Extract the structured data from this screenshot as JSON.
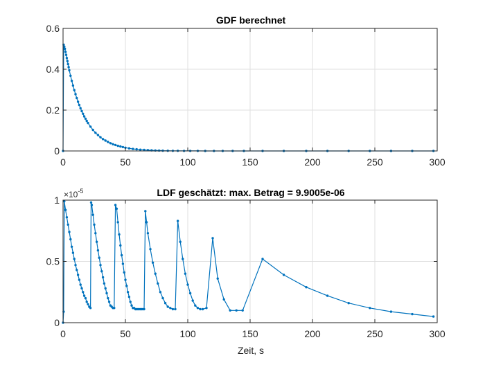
{
  "chart_data": [
    {
      "type": "line",
      "title": "GDF berechnet",
      "xlabel": "",
      "ylabel": "",
      "xlim": [
        0,
        300
      ],
      "ylim": [
        0,
        0.6
      ],
      "xticks": [
        "0",
        "50",
        "100",
        "150",
        "200",
        "250",
        "300"
      ],
      "yticks": [
        "0",
        "0.2",
        "0.4",
        "0.6"
      ],
      "grid": true,
      "color": "#0072BD",
      "x": [
        0,
        0.5,
        1,
        1.5,
        2,
        2.5,
        3,
        3.5,
        4,
        4.5,
        5,
        6,
        7,
        8,
        9,
        10,
        11,
        12,
        13,
        14,
        15,
        16,
        17,
        18,
        19,
        20,
        22,
        24,
        26,
        28,
        30,
        32,
        34,
        36,
        38,
        40,
        42,
        44,
        46,
        48,
        50,
        53,
        56,
        59,
        62,
        65,
        68,
        71,
        74,
        77,
        80,
        84,
        88,
        92,
        97,
        102,
        108,
        114,
        121,
        128,
        136,
        145,
        160,
        177,
        195,
        212,
        229,
        246,
        263,
        280,
        297
      ],
      "y": [
        0,
        0.52,
        0.51,
        0.5,
        0.485,
        0.47,
        0.455,
        0.44,
        0.425,
        0.41,
        0.395,
        0.368,
        0.343,
        0.32,
        0.298,
        0.278,
        0.259,
        0.241,
        0.225,
        0.209,
        0.195,
        0.182,
        0.169,
        0.158,
        0.147,
        0.137,
        0.119,
        0.103,
        0.089,
        0.078,
        0.067,
        0.058,
        0.051,
        0.044,
        0.038,
        0.033,
        0.029,
        0.025,
        0.022,
        0.019,
        0.016,
        0.013,
        0.01,
        0.008,
        0.006,
        0.005,
        0.004,
        0.003,
        0.0025,
        0.002,
        0.0015,
        0.001,
        0.0008,
        0.0006,
        0.0004,
        0.0003,
        0.0002,
        0.00015,
        0.0001,
        8e-05,
        5e-05,
        3e-05,
        2e-05,
        1e-05,
        1e-05,
        1e-05,
        1e-05,
        1e-05,
        1e-05,
        1e-05,
        1e-05
      ]
    },
    {
      "type": "line",
      "title": "LDF geschätzt: max. Betrag = 9.9005e-06",
      "xlabel": "Zeit, s",
      "ylabel": "",
      "y_multiplier": "×10",
      "y_multiplier_exponent": "-5",
      "xlim": [
        0,
        300
      ],
      "ylim": [
        0,
        1
      ],
      "xticks": [
        "0",
        "50",
        "100",
        "150",
        "200",
        "250",
        "300"
      ],
      "yticks": [
        "0",
        "0.5",
        "1"
      ],
      "grid": true,
      "color": "#0072BD",
      "x": [
        0,
        0.5,
        1,
        2,
        3,
        4,
        5,
        6,
        7,
        8,
        9,
        10,
        11,
        12,
        13,
        14,
        15,
        16,
        17,
        18,
        19,
        20,
        21,
        22,
        22.5,
        23,
        24,
        25,
        26,
        27,
        28,
        29,
        30,
        31,
        32,
        33,
        34,
        35,
        36,
        37,
        38,
        39,
        40,
        41,
        42,
        43,
        44,
        45,
        46,
        47,
        48,
        49,
        50,
        51,
        52,
        53,
        54,
        55,
        56,
        57,
        58,
        59,
        60,
        61,
        62,
        63,
        64,
        65,
        66,
        67,
        68,
        70,
        72,
        74,
        76,
        78,
        80,
        82,
        84,
        86,
        88,
        90,
        92,
        94,
        96,
        98,
        100,
        102,
        104,
        106,
        108,
        110,
        112,
        115,
        120,
        124,
        129,
        134,
        139,
        144,
        160,
        177,
        195,
        212,
        229,
        246,
        263,
        280,
        297
      ],
      "y": [
        0.0,
        0.09,
        0.99,
        0.92,
        0.86,
        0.8,
        0.74,
        0.68,
        0.62,
        0.57,
        0.52,
        0.47,
        0.43,
        0.39,
        0.35,
        0.31,
        0.28,
        0.25,
        0.22,
        0.2,
        0.17,
        0.15,
        0.13,
        0.12,
        0.98,
        0.96,
        0.88,
        0.8,
        0.73,
        0.66,
        0.59,
        0.53,
        0.47,
        0.42,
        0.37,
        0.32,
        0.28,
        0.24,
        0.2,
        0.17,
        0.14,
        0.13,
        0.12,
        0.12,
        0.96,
        0.93,
        0.82,
        0.72,
        0.63,
        0.55,
        0.48,
        0.41,
        0.35,
        0.3,
        0.25,
        0.21,
        0.17,
        0.14,
        0.12,
        0.12,
        0.11,
        0.11,
        0.11,
        0.11,
        0.11,
        0.11,
        0.11,
        0.11,
        0.91,
        0.82,
        0.73,
        0.6,
        0.49,
        0.4,
        0.32,
        0.25,
        0.2,
        0.16,
        0.13,
        0.12,
        0.11,
        0.11,
        0.83,
        0.66,
        0.52,
        0.4,
        0.31,
        0.24,
        0.18,
        0.14,
        0.12,
        0.11,
        0.11,
        0.12,
        0.69,
        0.36,
        0.19,
        0.1,
        0.1,
        0.1,
        0.52,
        0.39,
        0.29,
        0.22,
        0.16,
        0.12,
        0.09,
        0.07,
        0.05
      ]
    }
  ]
}
